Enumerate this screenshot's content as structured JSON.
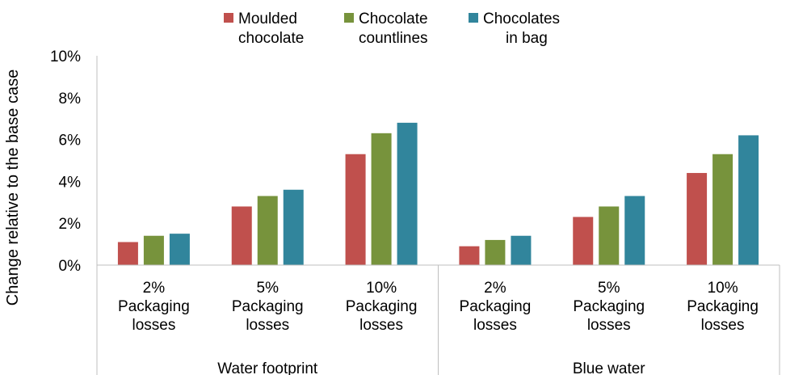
{
  "chart_data": {
    "type": "bar",
    "title": "",
    "xlabel": "",
    "ylabel": "Change relative to the base case",
    "ylim": [
      0,
      0.1
    ],
    "yticks": [
      "0%",
      "2%",
      "4%",
      "6%",
      "8%",
      "10%"
    ],
    "grid": false,
    "legend_position": "top",
    "groups": [
      {
        "label": "Water footprint",
        "categories": [
          "2%\nPackaging\nlosses",
          "5%\nPackaging\nlosses",
          "10%\nPackaging\nlosses"
        ]
      },
      {
        "label": "Blue water",
        "categories": [
          "2%\nPackaging\nlosses",
          "5%\nPackaging\nlosses",
          "10%\nPackaging\nlosses"
        ]
      }
    ],
    "series": [
      {
        "name": "Moulded\nchocolate",
        "color": "#c0504d",
        "values": [
          0.011,
          0.028,
          0.053,
          0.009,
          0.023,
          0.044
        ]
      },
      {
        "name": "Chocolate\ncountlines",
        "color": "#77933c",
        "values": [
          0.014,
          0.033,
          0.063,
          0.012,
          0.028,
          0.053
        ]
      },
      {
        "name": "Chocolates\nin bag",
        "color": "#31859c",
        "values": [
          0.015,
          0.036,
          0.068,
          0.014,
          0.033,
          0.062
        ]
      }
    ]
  }
}
